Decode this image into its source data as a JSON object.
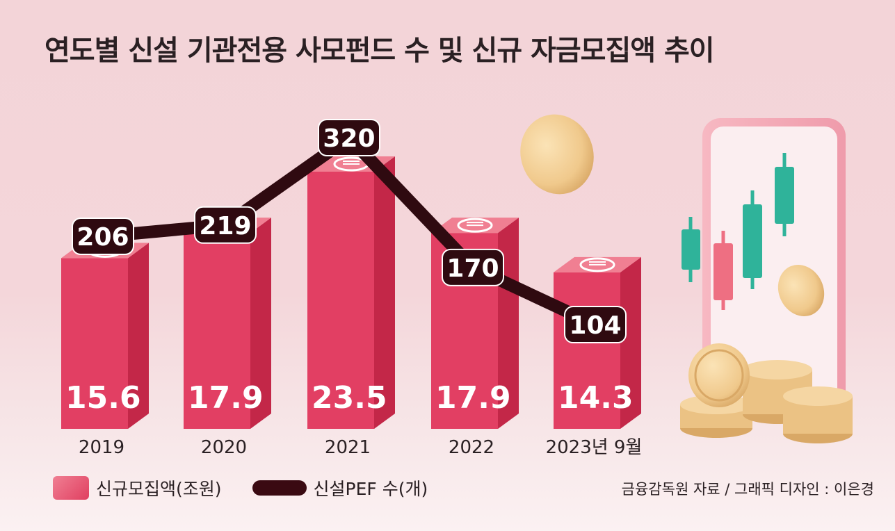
{
  "title": "연도별 신설 기관전용 사모펀드 수 및 신규 자금모집액 추이",
  "chart_data": {
    "type": "bar",
    "title": "연도별 신설 기관전용 사모펀드 수 및 신규 자금모집액 추이",
    "categories": [
      "2019",
      "2020",
      "2021",
      "2022",
      "2023년 9월"
    ],
    "series": [
      {
        "name": "신규모집액(조원)",
        "type": "bar",
        "values": [
          15.6,
          17.9,
          23.5,
          17.9,
          14.3
        ]
      },
      {
        "name": "신설PEF 수(개)",
        "type": "line",
        "values": [
          206,
          219,
          320,
          170,
          104
        ]
      }
    ],
    "xlabel": "",
    "ylabel": "",
    "legend_position": "bottom-left",
    "grid": false
  },
  "legend": {
    "bar_label": "신규모집액(조원)",
    "line_label": "신설PEF 수(개)"
  },
  "source": "금융감독원 자료 / 그래픽 디자인 : 이은경",
  "colors": {
    "bar_front": "#e23f63",
    "bar_side": "#c32748",
    "bar_top": "#f07f92",
    "line": "#2f0a10",
    "pill": "#2f0a10",
    "candle_green": "#2fb39a",
    "candle_red": "#ee6f82",
    "coin": "#f0c98c"
  },
  "icons": {
    "won_banknote": "won-banknote-icon"
  }
}
